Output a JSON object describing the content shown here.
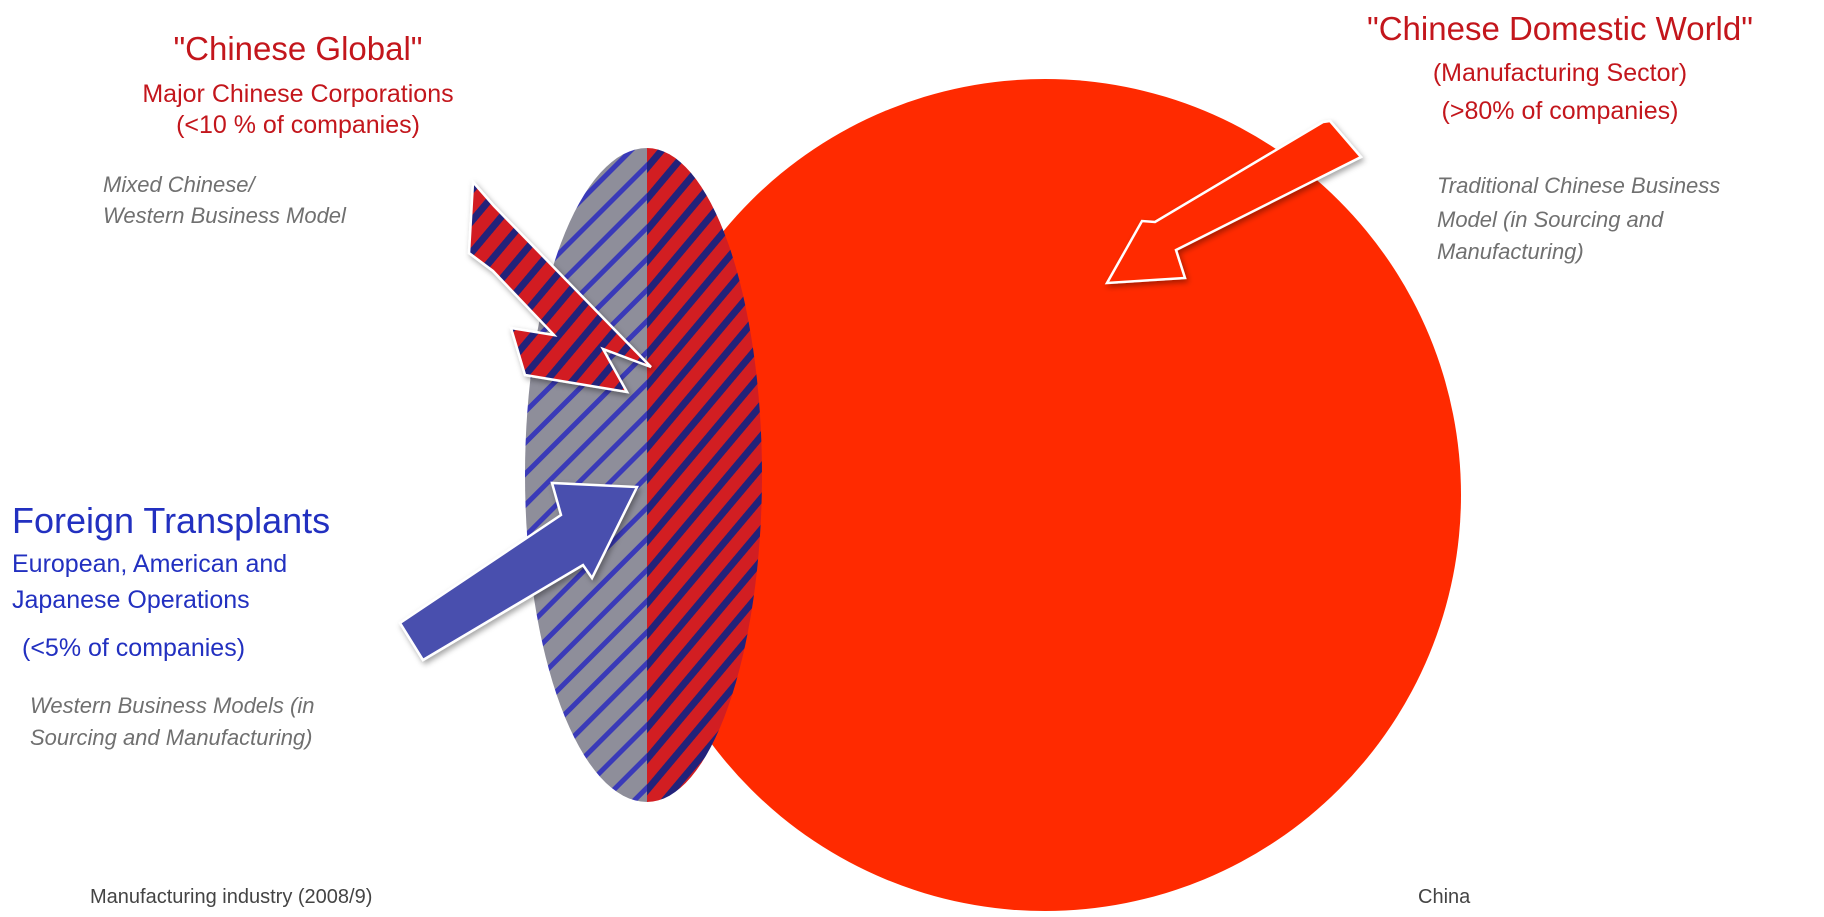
{
  "chinese_global": {
    "title": "\"Chinese Global\"",
    "subtitle": "Major Chinese Corporations",
    "share": "(<10 % of companies)",
    "model_line1": "Mixed Chinese/",
    "model_line2": "Western Business Model"
  },
  "chinese_domestic": {
    "title": "\"Chinese Domestic World\"",
    "subtitle": "(Manufacturing Sector)",
    "share": "(>80% of companies)",
    "model_line1": "Traditional Chinese Business",
    "model_line2": "Model (in Sourcing and",
    "model_line3": "Manufacturing)"
  },
  "foreign_transplants": {
    "title": "Foreign Transplants",
    "subtitle_line1": "European, American and",
    "subtitle_line2": "Japanese Operations",
    "share": "(<5% of companies)",
    "model_line1": "Western Business Models (in",
    "model_line2": "Sourcing and Manufacturing)"
  },
  "footer": {
    "left": "Manufacturing industry (2008/9)",
    "right": "China"
  },
  "colors": {
    "domestic_red": "#ff2a00",
    "global_red": "#c3161c",
    "foreign_blue": "#4a4fae",
    "stripe_navy": "#22227a",
    "gray_fill": "#8e8e9a"
  }
}
